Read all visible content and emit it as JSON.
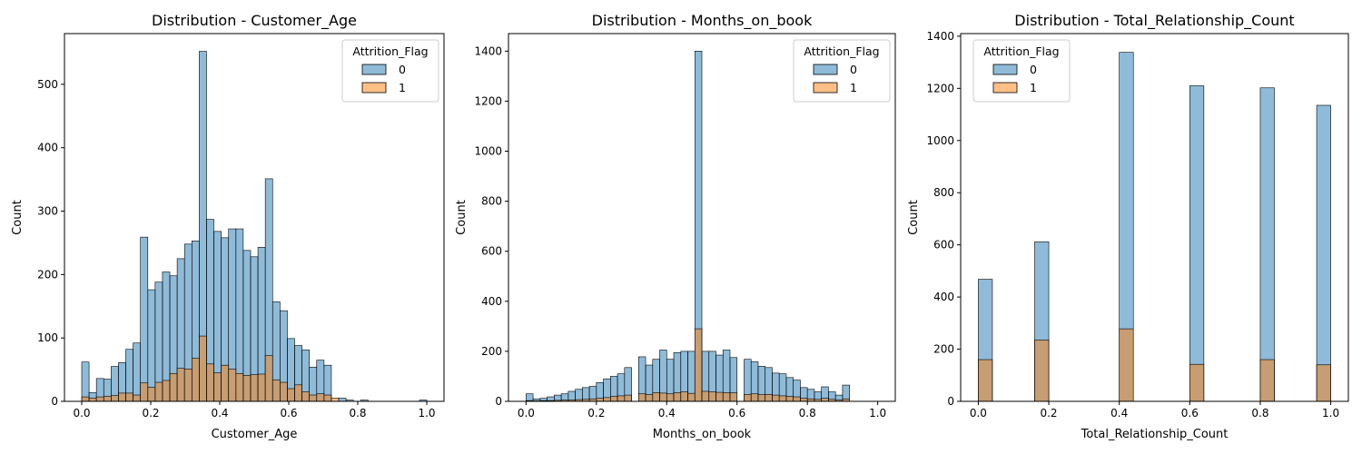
{
  "colors": {
    "class0_fill": "#1f77b4",
    "class1_fill": "#ff7f0e",
    "overlap_fill": "#7f8f8f",
    "edge": "#000000"
  },
  "chart_data": [
    {
      "type": "bar",
      "subtype": "histogram-overlay",
      "title": "Distribution - Customer_Age",
      "xlabel": "Customer_Age",
      "ylabel": "Count",
      "xlim": [
        -0.05,
        1.05
      ],
      "ylim": [
        0,
        580
      ],
      "xticks": [
        "0.0",
        "0.2",
        "0.4",
        "0.6",
        "0.8",
        "1.0"
      ],
      "xtick_values": [
        0,
        0.2,
        0.4,
        0.6,
        0.8,
        1.0
      ],
      "yticks": [
        "0",
        "100",
        "200",
        "300",
        "400",
        "500"
      ],
      "ytick_values": [
        0,
        100,
        200,
        300,
        400,
        500
      ],
      "bin_width": 0.02128,
      "bin_start": 0,
      "legend": {
        "title": "Attrition_Flag",
        "entries": [
          "0",
          "1"
        ],
        "position": "top-right"
      },
      "series": [
        {
          "name": "0",
          "values": [
            62,
            14,
            36,
            35,
            55,
            61,
            82,
            92,
            259,
            176,
            188,
            204,
            198,
            225,
            248,
            253,
            552,
            287,
            268,
            258,
            272,
            272,
            238,
            228,
            243,
            351,
            157,
            143,
            99,
            88,
            81,
            54,
            65,
            57,
            0,
            5,
            2,
            0,
            2,
            0,
            0,
            0,
            0,
            0,
            0,
            0,
            2
          ]
        },
        {
          "name": "1",
          "values": [
            7,
            5,
            7,
            8,
            9,
            13,
            13,
            10,
            29,
            22,
            30,
            33,
            44,
            52,
            51,
            68,
            103,
            59,
            45,
            57,
            51,
            44,
            41,
            42,
            43,
            72,
            34,
            30,
            20,
            26,
            15,
            10,
            12,
            10,
            5,
            0,
            0,
            0,
            0,
            0,
            0,
            0,
            0,
            0,
            0,
            0,
            0
          ]
        }
      ]
    },
    {
      "type": "bar",
      "subtype": "histogram-overlay",
      "title": "Distribution - Months_on_book",
      "xlabel": "Months_on_book",
      "ylabel": "Count",
      "xlim": [
        -0.05,
        1.05
      ],
      "ylim": [
        0,
        1470
      ],
      "xticks": [
        "0.0",
        "0.2",
        "0.4",
        "0.6",
        "0.8",
        "1.0"
      ],
      "xtick_values": [
        0,
        0.2,
        0.4,
        0.6,
        0.8,
        1.0
      ],
      "yticks": [
        "0",
        "200",
        "400",
        "600",
        "800",
        "1000",
        "1200",
        "1400"
      ],
      "ytick_values": [
        0,
        200,
        400,
        600,
        800,
        1000,
        1200,
        1400
      ],
      "bin_width": 0.02,
      "bin_start": 0,
      "legend": {
        "title": "Attrition_Flag",
        "entries": [
          "0",
          "1"
        ],
        "position": "top-right"
      },
      "series": [
        {
          "name": "0",
          "values": [
            30,
            10,
            12,
            18,
            25,
            30,
            40,
            48,
            55,
            60,
            75,
            90,
            100,
            110,
            135,
            0,
            178,
            145,
            168,
            205,
            168,
            195,
            200,
            200,
            1400,
            200,
            200,
            185,
            205,
            175,
            0,
            168,
            158,
            140,
            135,
            113,
            110,
            95,
            85,
            55,
            48,
            38,
            58,
            38,
            25,
            65
          ]
        },
        {
          "name": "1",
          "values": [
            3,
            2,
            3,
            3,
            4,
            5,
            6,
            7,
            8,
            10,
            12,
            15,
            20,
            22,
            25,
            0,
            30,
            28,
            35,
            33,
            30,
            35,
            38,
            32,
            290,
            40,
            38,
            36,
            35,
            34,
            0,
            28,
            30,
            27,
            28,
            25,
            22,
            20,
            18,
            12,
            10,
            8,
            12,
            8,
            5,
            10
          ]
        }
      ]
    },
    {
      "type": "bar",
      "subtype": "histogram-overlay",
      "title": "Distribution - Total_Relationship_Count",
      "xlabel": "Total_Relationship_Count",
      "ylabel": "Count",
      "xlim": [
        -0.05,
        1.05
      ],
      "ylim": [
        0,
        1410
      ],
      "xticks": [
        "0.0",
        "0.2",
        "0.4",
        "0.6",
        "0.8",
        "1.0"
      ],
      "xtick_values": [
        0,
        0.2,
        0.4,
        0.6,
        0.8,
        1.0
      ],
      "yticks": [
        "0",
        "200",
        "400",
        "600",
        "800",
        "1000",
        "1200",
        "1400"
      ],
      "ytick_values": [
        0,
        200,
        400,
        600,
        800,
        1000,
        1200,
        1400
      ],
      "bin_width": 0.04,
      "bin_start": 0,
      "legend": {
        "title": "Attrition_Flag",
        "entries": [
          "0",
          "1"
        ],
        "position": "top-left"
      },
      "series": [
        {
          "name": "0",
          "values": [
            468,
            0,
            0,
            0,
            612,
            0,
            0,
            0,
            0,
            0,
            1338,
            0,
            0,
            0,
            0,
            1210,
            0,
            0,
            0,
            0,
            1202,
            0,
            0,
            0,
            1135
          ]
        },
        {
          "name": "1",
          "values": [
            160,
            0,
            0,
            0,
            235,
            0,
            0,
            0,
            0,
            0,
            278,
            0,
            0,
            0,
            0,
            142,
            0,
            0,
            0,
            0,
            160,
            0,
            0,
            0,
            140
          ]
        }
      ]
    }
  ]
}
